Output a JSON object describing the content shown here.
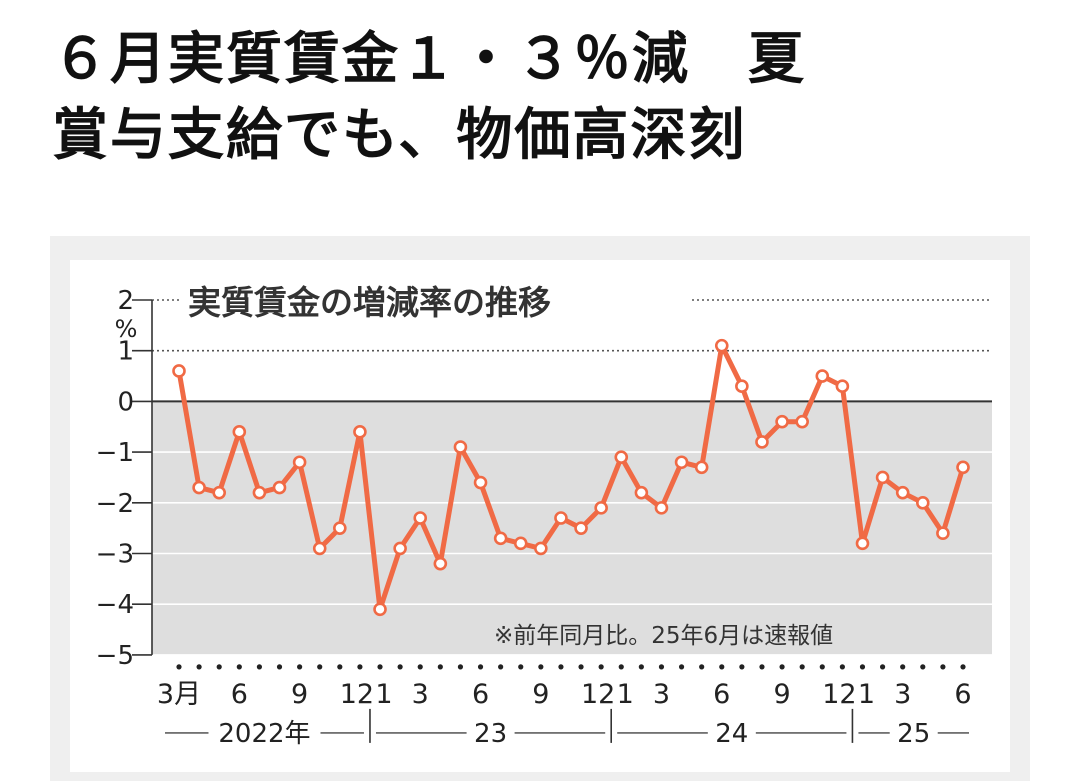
{
  "headline": {
    "line1": "６月実質賃金１・３％減　夏",
    "line2": "賞与支給でも、物価高深刻"
  },
  "chart_data": {
    "type": "line",
    "title": "実質賃金の増減率の推移",
    "y_unit": "%",
    "note": "※前年同月比。25年6月は速報値",
    "ylim": [
      -5,
      2
    ],
    "yticks": [
      "2",
      "1",
      "0",
      "−1",
      "−2",
      "−3",
      "−4",
      "−5"
    ],
    "x_month_ticks": [
      "3月",
      "6",
      "9",
      "12",
      "1",
      "3",
      "6",
      "9",
      "12",
      "1",
      "3",
      "6",
      "9",
      "12",
      "1",
      "3",
      "6"
    ],
    "x_year_labels": [
      "2022年",
      "23",
      "24",
      "25"
    ],
    "x": [
      "2022-03",
      "2022-04",
      "2022-05",
      "2022-06",
      "2022-07",
      "2022-08",
      "2022-09",
      "2022-10",
      "2022-11",
      "2022-12",
      "2023-01",
      "2023-02",
      "2023-03",
      "2023-04",
      "2023-05",
      "2023-06",
      "2023-07",
      "2023-08",
      "2023-09",
      "2023-10",
      "2023-11",
      "2023-12",
      "2024-01",
      "2024-02",
      "2024-03",
      "2024-04",
      "2024-05",
      "2024-06",
      "2024-07",
      "2024-08",
      "2024-09",
      "2024-10",
      "2024-11",
      "2024-12",
      "2025-01",
      "2025-02",
      "2025-03",
      "2025-04",
      "2025-05",
      "2025-06"
    ],
    "series": [
      {
        "values": [
          0.6,
          -1.7,
          -1.8,
          -0.6,
          -1.8,
          -1.7,
          -1.2,
          -2.9,
          -2.5,
          -0.6,
          -4.1,
          -2.9,
          -2.3,
          -3.2,
          -0.9,
          -1.6,
          -2.7,
          -2.8,
          -2.9,
          -2.3,
          -2.5,
          -2.1,
          -1.1,
          -1.8,
          -2.1,
          -1.2,
          -1.3,
          1.1,
          0.3,
          -0.8,
          -0.4,
          -0.4,
          0.5,
          0.3,
          -2.8,
          -1.5,
          -1.8,
          -2.0,
          -2.6,
          -1.3
        ],
        "color": "#f06a45"
      }
    ],
    "grid": true,
    "dotted_gridlines_at": [
      2,
      1
    ],
    "background_shaded_below": 0
  }
}
